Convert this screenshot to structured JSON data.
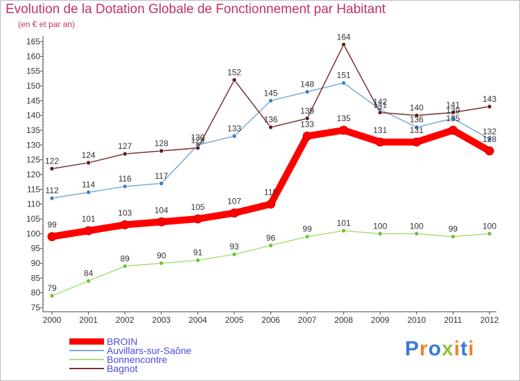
{
  "header": {
    "title": "Evolution de la Dotation Globale de Fonctionnement par Habitant",
    "subtitle": "(en € et par an)"
  },
  "logo": {
    "text": "Proxiti",
    "letter_colors": [
      "#3a7bd5",
      "#e8862a",
      "#3a7bd5",
      "#8dc63f",
      "#e8862a",
      "#3a7bd5",
      "#e8862a"
    ]
  },
  "chart_data": {
    "type": "line",
    "title": "Evolution de la Dotation Globale de Fonctionnement par Habitant",
    "subtitle": "(en € et par an)",
    "xlabel": "",
    "ylabel": "",
    "x": [
      2000,
      2001,
      2002,
      2003,
      2004,
      2005,
      2006,
      2007,
      2008,
      2009,
      2010,
      2011,
      2012
    ],
    "ylim": [
      75,
      165
    ],
    "yticks": [
      75,
      80,
      85,
      90,
      95,
      100,
      105,
      110,
      115,
      120,
      125,
      130,
      135,
      140,
      145,
      150,
      155,
      160,
      165
    ],
    "grid": false,
    "legend_position": "bottom-left",
    "series": [
      {
        "name": "BROIN",
        "color": "#ff0000",
        "marker_color": "#cc0000",
        "values": [
          99,
          101,
          103,
          104,
          105,
          107,
          110,
          133,
          135,
          131,
          131,
          135,
          128
        ],
        "emphasis": true
      },
      {
        "name": "Auvillars-sur-Saône",
        "color": "#7aaad8",
        "marker_color": "#3f7fc0",
        "values": [
          112,
          114,
          116,
          117,
          130,
          133,
          145,
          148,
          151,
          142,
          136,
          139,
          132
        ],
        "emphasis": false
      },
      {
        "name": "Bonnencontre",
        "color": "#a8e07a",
        "marker_color": "#6cc23a",
        "values": [
          79,
          84,
          89,
          90,
          91,
          93,
          96,
          99,
          101,
          100,
          100,
          99,
          100
        ],
        "emphasis": false
      },
      {
        "name": "Bagnot",
        "color": "#7a3030",
        "marker_color": "#6a1a1a",
        "values": [
          122,
          124,
          127,
          128,
          129,
          152,
          136,
          139,
          164,
          141,
          140,
          141,
          143
        ],
        "emphasis": false
      }
    ]
  }
}
